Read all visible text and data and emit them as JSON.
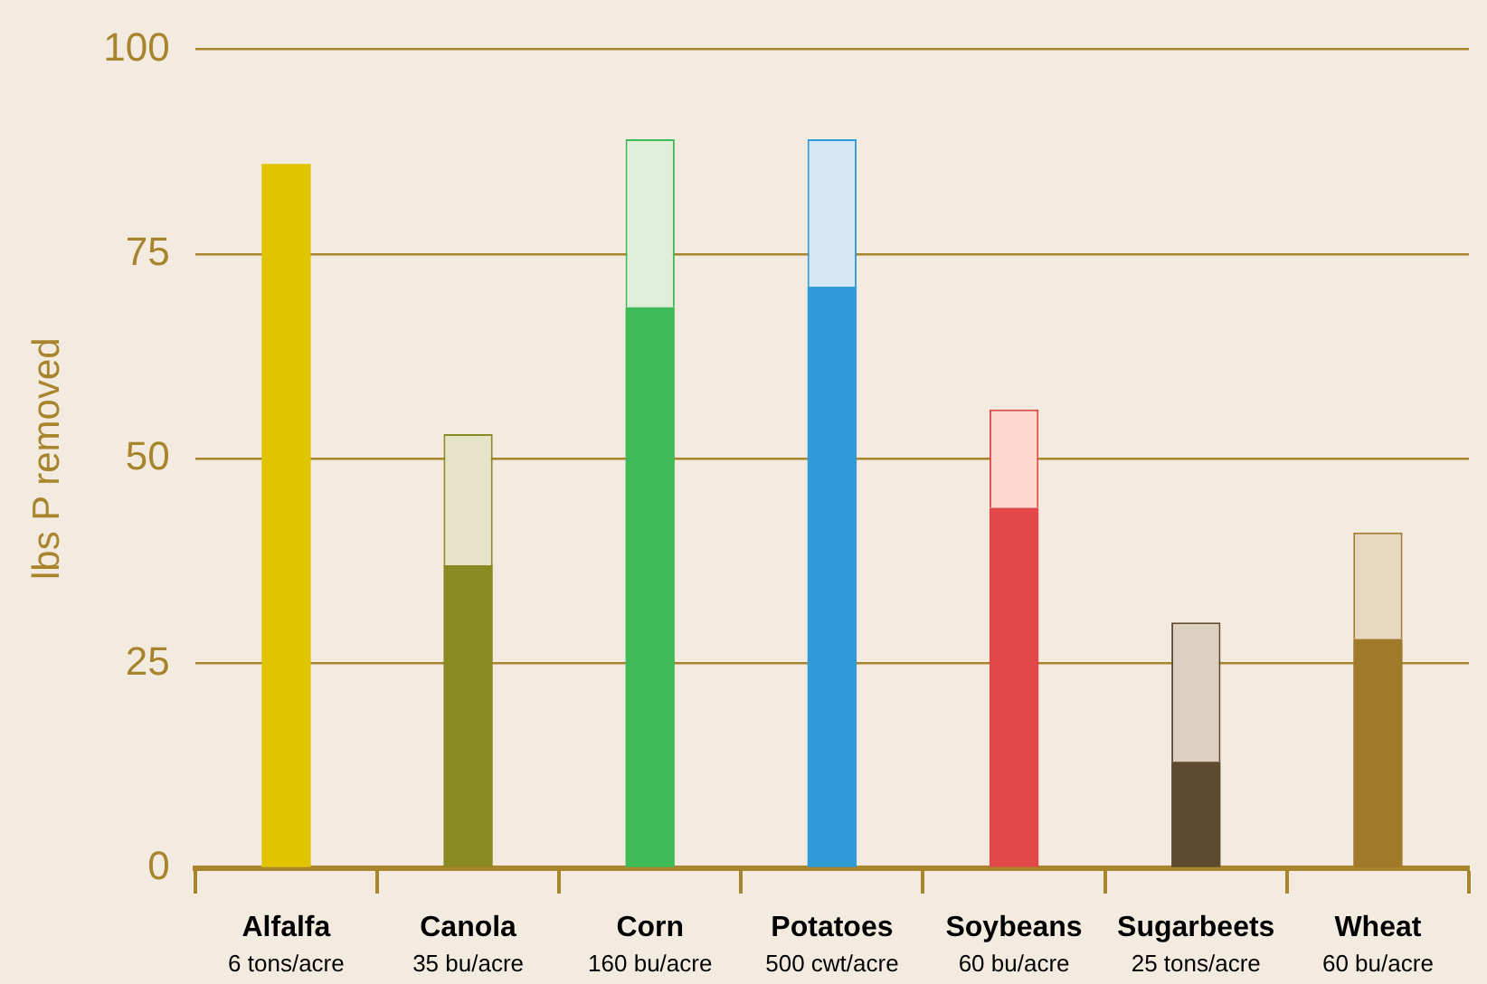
{
  "chart_data": {
    "type": "bar",
    "stacked": true,
    "ylabel": "lbs P removed",
    "categories": [
      "Alfalfa\n6 tons/acre",
      "Canola\n35 bu/acre",
      "Corn\n160 bu/acre",
      "Potatoes\n500 cwt/acre",
      "Soybeans\n60 bu/acre",
      "Sugarbeets\n25 tons/acre",
      "Wheat\n60 bu/acre"
    ],
    "series": [
      {
        "colors": [
          "#e0c400",
          "#8a8a22",
          "#3fba58",
          "#2f9cd8",
          "#e34848",
          "#5e4a2e",
          "#a07a2a"
        ],
        "values": [
          86,
          37,
          68.5,
          71,
          44,
          13,
          28
        ]
      },
      {
        "colors": [
          "#f3ebe0",
          "#e6e4c8",
          "#e0efd9",
          "#d5e6f4",
          "#fcd9cc",
          "#dcd0c2",
          "#e9d8c0"
        ],
        "values": [
          null,
          16,
          20.5,
          18,
          12,
          17,
          13
        ]
      }
    ],
    "ylim": [
      0,
      100
    ],
    "yticks": [
      0,
      25,
      50,
      75,
      100
    ],
    "grid": "y",
    "legend": false
  }
}
